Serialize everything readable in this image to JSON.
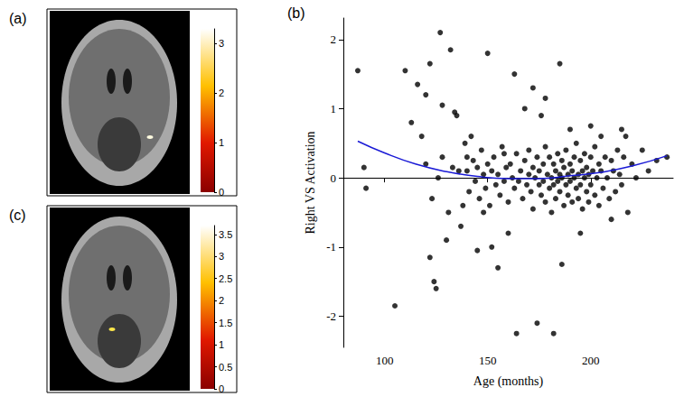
{
  "chart_data": [
    {
      "type": "image",
      "label": "(a)",
      "colorbar": {
        "range": [
          0,
          3.3
        ],
        "ticks": [
          0,
          1,
          2,
          3
        ]
      }
    },
    {
      "type": "scatter",
      "label": "(b)",
      "x_label": "Age (months)",
      "y_label": "Right VS Activation",
      "xlim": [
        80,
        240
      ],
      "xticks": [
        100,
        150,
        200
      ],
      "ylim": [
        -2.45,
        2.31
      ],
      "yticks": [
        -2,
        -1,
        0,
        1,
        2
      ],
      "grid": false,
      "series": [
        {
          "type": "scatter",
          "color": "#000000",
          "marker": "circle",
          "x": [
            87,
            90,
            91,
            105,
            110,
            113,
            116,
            118,
            120,
            120,
            122,
            122,
            123,
            124,
            125,
            126,
            127,
            128,
            128,
            130,
            131,
            132,
            133,
            134,
            135,
            136,
            137,
            138,
            139,
            140,
            140,
            141,
            142,
            143,
            144,
            145,
            145,
            146,
            147,
            148,
            148,
            149,
            150,
            150,
            151,
            152,
            152,
            153,
            154,
            155,
            155,
            156,
            157,
            158,
            158,
            159,
            160,
            160,
            161,
            162,
            163,
            163,
            164,
            164,
            165,
            166,
            167,
            168,
            168,
            169,
            170,
            170,
            171,
            172,
            172,
            172,
            173,
            174,
            174,
            175,
            175,
            176,
            176,
            177,
            177,
            178,
            178,
            178,
            179,
            180,
            180,
            181,
            181,
            182,
            182,
            182,
            183,
            183,
            184,
            184,
            185,
            185,
            185,
            186,
            186,
            186,
            187,
            187,
            188,
            188,
            189,
            189,
            190,
            190,
            190,
            191,
            191,
            192,
            192,
            193,
            193,
            194,
            194,
            195,
            195,
            195,
            196,
            196,
            197,
            197,
            198,
            198,
            199,
            199,
            200,
            200,
            200,
            201,
            202,
            202,
            203,
            204,
            204,
            205,
            205,
            206,
            207,
            208,
            209,
            210,
            210,
            211,
            212,
            213,
            214,
            215,
            215,
            216,
            217,
            218,
            220,
            222,
            225,
            228,
            232,
            237
          ],
          "values": [
            1.55,
            0.15,
            -0.15,
            -1.85,
            1.55,
            0.8,
            1.35,
            0.6,
            1.2,
            0.2,
            1.65,
            -1.15,
            -0.3,
            -1.5,
            -1.6,
            0.0,
            2.1,
            1.05,
            0.3,
            -0.9,
            -0.5,
            1.85,
            0.15,
            0.95,
            0.9,
            0.1,
            -0.7,
            -0.4,
            0.5,
            0.3,
            0.1,
            -0.2,
            0.6,
            0.25,
            -0.05,
            -1.05,
            0.15,
            -0.3,
            0.4,
            -0.5,
            0.05,
            -0.15,
            1.8,
            0.2,
            -0.4,
            -1.0,
            0.1,
            0.3,
            -0.1,
            -1.3,
            0.05,
            -0.25,
            0.45,
            0.35,
            -0.05,
            0.15,
            -0.8,
            -0.35,
            0.2,
            0.0,
            1.5,
            -0.15,
            -2.25,
            0.35,
            -0.05,
            0.1,
            -0.3,
            1.0,
            0.25,
            -0.1,
            0.05,
            0.4,
            -0.2,
            1.3,
            0.15,
            -0.45,
            0.0,
            -2.1,
            0.3,
            -0.1,
            0.1,
            0.9,
            -0.25,
            0.2,
            -0.05,
            1.15,
            0.45,
            -0.35,
            0.05,
            -0.15,
            0.3,
            0.0,
            -0.5,
            -2.25,
            0.2,
            -0.1,
            0.1,
            -0.3,
            0.35,
            -0.05,
            1.65,
            0.05,
            -0.2,
            -1.25,
            0.25,
            0.0,
            -0.4,
            0.15,
            -0.1,
            0.4,
            0.05,
            -0.25,
            0.7,
            0.2,
            -0.05,
            0.1,
            -0.35,
            0.3,
            0.0,
            -0.15,
            0.5,
            0.05,
            -0.3,
            -0.8,
            0.25,
            -0.1,
            0.1,
            -0.45,
            0.35,
            0.0,
            -0.2,
            0.15,
            0.05,
            -0.35,
            0.75,
            0.3,
            -0.1,
            0.1,
            -0.25,
            0.45,
            0.0,
            0.2,
            -0.4,
            0.6,
            0.1,
            -0.15,
            0.3,
            0.0,
            -0.3,
            -0.6,
            0.25,
            0.1,
            -0.2,
            0.4,
            0.05,
            0.7,
            -0.1,
            0.3,
            0.6,
            -0.5,
            0.2,
            0.0,
            0.4,
            0.1,
            0.25,
            0.3
          ]
        },
        {
          "type": "line",
          "color": "#1a1ad6",
          "line_style": "solid",
          "x": [
            87,
            100,
            115,
            130,
            145,
            160,
            175,
            190,
            205,
            220,
            237
          ],
          "values": [
            0.53,
            0.36,
            0.2,
            0.09,
            0.02,
            -0.01,
            -0.01,
            0.03,
            0.08,
            0.17,
            0.32
          ]
        }
      ]
    },
    {
      "type": "image",
      "label": "(c)",
      "colorbar": {
        "range": [
          0,
          3.7
        ],
        "ticks": [
          0,
          0.5,
          1,
          1.5,
          2,
          2.5,
          3,
          3.5
        ]
      }
    }
  ]
}
